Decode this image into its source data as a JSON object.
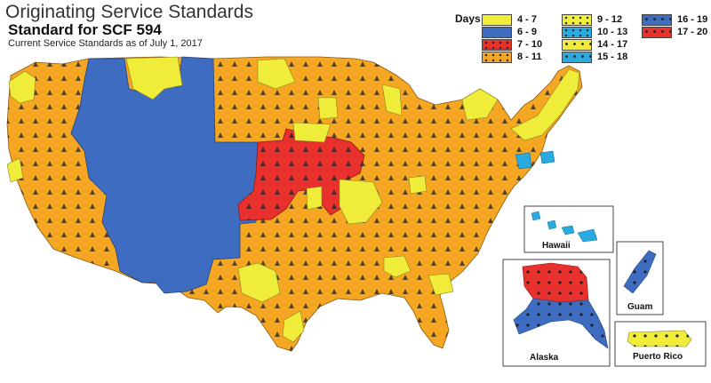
{
  "header": {
    "title": "Originating Service Standards",
    "subtitle": "Standard for SCF 594",
    "caption": "Current Service Standards as of July 1, 2017"
  },
  "legend": {
    "heading": "Days",
    "items": [
      {
        "label": "4 - 7",
        "color": "#f0ec3a",
        "pattern": "none"
      },
      {
        "label": "6 - 9",
        "color": "#3d6cc0",
        "pattern": "none"
      },
      {
        "label": "7 - 10",
        "color": "#e8302c",
        "pattern": "triangles"
      },
      {
        "label": "8 - 11",
        "color": "#f5a623",
        "pattern": "triangles"
      },
      {
        "label": "9 - 12",
        "color": "#f0ec3a",
        "pattern": "triangles"
      },
      {
        "label": "10 - 13",
        "color": "#29abe2",
        "pattern": "triangles"
      },
      {
        "label": "14 - 17",
        "color": "#f0ec3a",
        "pattern": "dots"
      },
      {
        "label": "15 - 18",
        "color": "#29abe2",
        "pattern": "dots"
      },
      {
        "label": "16 - 19",
        "color": "#3d6cc0",
        "pattern": "dots"
      },
      {
        "label": "17 - 20",
        "color": "#e8302c",
        "pattern": "dots"
      }
    ]
  },
  "insets": {
    "hawaii": "Hawaii",
    "alaska": "Alaska",
    "guam": "Guam",
    "puerto_rico": "Puerto Rico"
  },
  "colors": {
    "orange": "#f5a623",
    "blue": "#3d6cc0",
    "red": "#e8302c",
    "yellow": "#f0ec3a",
    "cyan": "#29abe2"
  }
}
